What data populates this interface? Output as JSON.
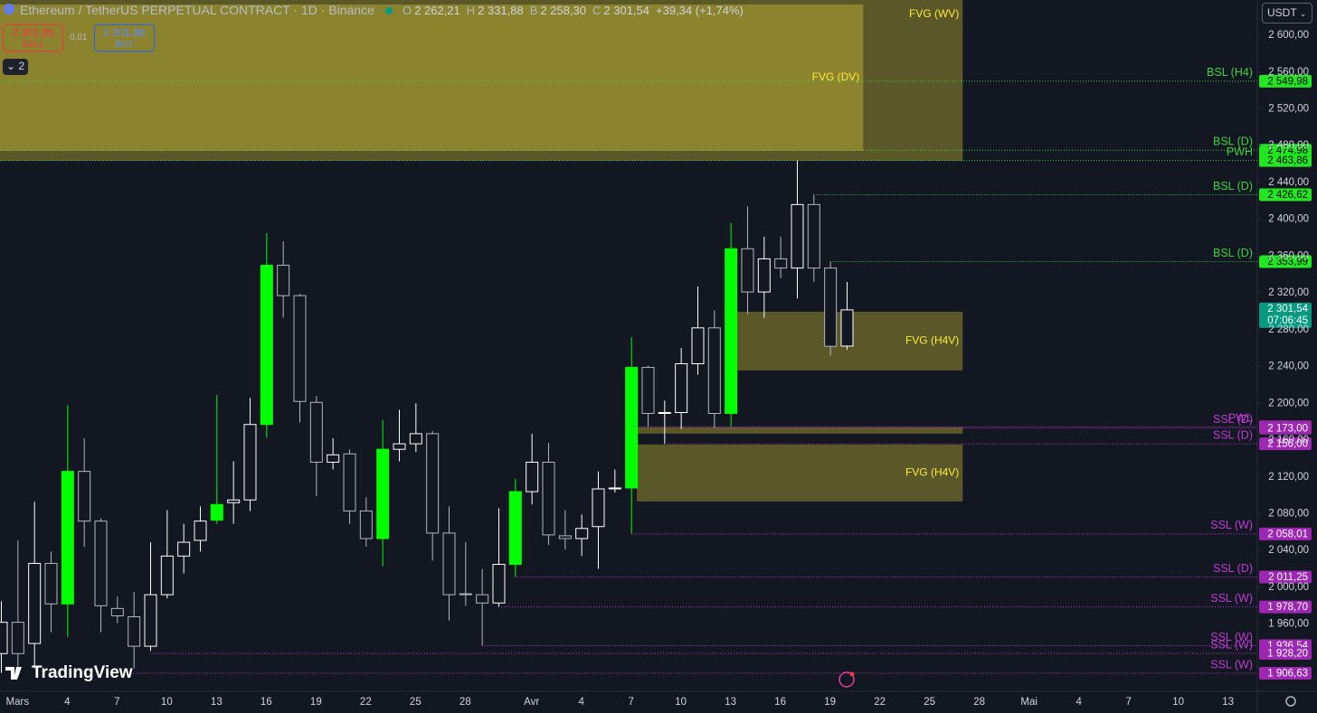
{
  "chart_data": {
    "type": "candlestick",
    "title": "Ethereum / TetherUS PERPETUAL CONTRACT · 1D · Binance",
    "legend": [
      {
        "key": "O",
        "value": "2 262,21"
      },
      {
        "key": "H",
        "value": "2 331,88"
      },
      {
        "key": "B",
        "value": "2 258,30"
      },
      {
        "key": "C",
        "value": "2 301,54"
      }
    ],
    "change": "+39,34 (+1,74%)",
    "categories": [
      null,
      "Mars",
      null,
      null,
      "4",
      null,
      null,
      "7",
      null,
      null,
      "10",
      null,
      null,
      "13",
      null,
      null,
      "16",
      null,
      null,
      "19",
      null,
      null,
      "22",
      null,
      null,
      "25",
      null,
      null,
      "28",
      null,
      null,
      null,
      "Avr",
      null,
      null,
      "4",
      null,
      null,
      "7",
      null,
      null,
      "10",
      null,
      null,
      "13",
      null,
      null,
      "16",
      null,
      null,
      "19",
      null,
      null,
      "22",
      null,
      null,
      "25",
      null,
      null,
      "28",
      null,
      null,
      "Mai",
      null,
      null,
      "4",
      null,
      null,
      "7",
      null,
      null,
      "10",
      null,
      null,
      "13",
      null
    ],
    "open": [
      1928,
      1962,
      1939,
      2026,
      1982,
      2126,
      2072,
      1977,
      1968,
      1936,
      1992,
      2034,
      2051,
      2073,
      2092,
      2095,
      2177,
      2350,
      2317,
      2201,
      2136,
      2145,
      2083,
      2053,
      2150,
      2156,
      2167,
      2059,
      1993,
      1992,
      1983,
      2025,
      2104,
      2136,
      2056,
      2053,
      2066,
      2107,
      2108,
      2239,
      2189,
      2190,
      2243,
      2282,
      2189,
      2368,
      2321,
      2357,
      2347,
      2416,
      2347,
      2262.21,
      null,
      null,
      null,
      null,
      null,
      null,
      null,
      null,
      null,
      null,
      null,
      null,
      null,
      null,
      null,
      null,
      null,
      null,
      null,
      null,
      null,
      null,
      null,
      null
    ],
    "high": [
      1985,
      2051,
      2093,
      2039,
      2198,
      2162,
      2075,
      1990,
      1995,
      2049,
      2084,
      2069,
      2088,
      2209,
      2137,
      2206,
      2385,
      2376,
      2319,
      2208,
      2162,
      2150,
      2098,
      2182,
      2193,
      2200,
      2170,
      2088,
      2049,
      2020,
      2086,
      2118,
      2167,
      2157,
      2084,
      2079,
      2126,
      2128,
      2272,
      2241,
      2203,
      2260,
      2327,
      2301,
      2396,
      2414,
      2381,
      2381,
      2463.86,
      2426.62,
      2353.99,
      2331.88,
      null,
      null,
      null,
      null,
      null,
      null,
      null,
      null,
      null,
      null,
      null,
      null,
      null,
      null,
      null,
      null,
      null,
      null,
      null,
      null,
      null,
      null,
      null,
      null
    ],
    "low": [
      1907,
      1914,
      1912,
      1951,
      1946,
      2044,
      1951,
      1961,
      1912,
      1931,
      1988,
      2015,
      2039,
      2069,
      2069,
      2083,
      2163,
      2293,
      2179,
      2099,
      2128,
      2069,
      2044,
      2023,
      2137,
      2147,
      2029,
      1964,
      1980,
      1936.54,
      1978.7,
      2011.25,
      2090,
      2046,
      2041,
      2034,
      2020,
      2103,
      2058.01,
      2174,
      2156,
      2172,
      2231,
      2173,
      2174.48,
      2297,
      2293,
      2336,
      2314,
      2332,
      2252,
      2258.3,
      null,
      null,
      null,
      null,
      null,
      null,
      null,
      null,
      null,
      null,
      null,
      null,
      null,
      null,
      null,
      null,
      null,
      null,
      null,
      null,
      null,
      null,
      null,
      null
    ],
    "close": [
      1962,
      1928,
      2026,
      1982,
      2126,
      2072,
      1980,
      1969,
      1936,
      1992,
      2034,
      2049,
      2072,
      2090,
      2095,
      2177,
      2350,
      2317,
      2202,
      2136,
      2144,
      2083,
      2053,
      2150,
      2156,
      2167,
      2059,
      1992,
      1992,
      1983,
      2025,
      2104,
      2136,
      2057,
      2053,
      2064,
      2107,
      2108,
      2239,
      2189,
      2190,
      2243,
      2282,
      2189,
      2368,
      2321,
      2357,
      2347,
      2416,
      2347,
      2262,
      2301.54,
      null,
      null,
      null,
      null,
      null,
      null,
      null,
      null,
      null,
      null,
      null,
      null,
      null,
      null,
      null,
      null,
      null,
      null,
      null,
      null,
      null,
      null,
      null,
      null
    ],
    "fills": [
      "none",
      "none",
      "none",
      "none",
      "#00ff00",
      "none",
      "none",
      "none",
      "none",
      "none",
      "none",
      "none",
      "none",
      "#00ff00",
      "none",
      "none",
      "#00ff00",
      "none",
      "none",
      "none",
      "none",
      "none",
      "none",
      "#00ff00",
      "none",
      "none",
      "none",
      "none",
      "none",
      "none",
      "none",
      "#00ff00",
      "none",
      "none",
      "none",
      "none",
      "none",
      "none",
      "#00ff00",
      "none",
      "none",
      "none",
      "none",
      "none",
      "#00ff00",
      "none",
      "none",
      "none",
      "none",
      "none",
      "none",
      "none",
      null,
      null,
      null,
      null,
      null,
      null,
      null,
      null,
      null,
      null,
      null,
      null,
      null,
      null,
      null,
      null,
      null,
      null,
      null,
      null,
      null,
      null,
      null,
      null
    ],
    "up_color": "#ffffff",
    "down_color": "#b2b5be",
    "ylim": [
      1887,
      2638.3
    ],
    "yticks": [
      {
        "value": 1960,
        "label": "1 960,00"
      },
      {
        "value": 2000,
        "label": "2 000,00"
      },
      {
        "value": 2040,
        "label": "2 040,00"
      },
      {
        "value": 2080,
        "label": "2 080,00"
      },
      {
        "value": 2120,
        "label": "2 120,00"
      },
      {
        "value": 2160,
        "label": "2 160,00"
      },
      {
        "value": 2200,
        "label": "2 200,00"
      },
      {
        "value": 2240,
        "label": "2 240,00"
      },
      {
        "value": 2280,
        "label": "2 280,00"
      },
      {
        "value": 2320,
        "label": "2 320,00"
      },
      {
        "value": 2360,
        "label": "2 360,00"
      },
      {
        "value": 2400,
        "label": "2 400,00"
      },
      {
        "value": 2440,
        "label": "2 440,00"
      },
      {
        "value": 2480,
        "label": "2 480,00"
      },
      {
        "value": 2520,
        "label": "2 520,00"
      },
      {
        "value": 2560,
        "label": "2 560,00"
      },
      {
        "value": 2600,
        "label": "2 600,00"
      }
    ],
    "grid": false,
    "zones": [
      {
        "label": "FVG (WV)",
        "top": 2782,
        "bottom": 2463.5,
        "from": 0,
        "to": 58,
        "color": "rgba(255, 235, 59, 0.3)"
      },
      {
        "label": "FVG (DV)",
        "top": 2633.4,
        "bottom": 2474.3,
        "from": 0,
        "to": 52,
        "color": "rgba(255, 235, 59, 0.3)"
      },
      {
        "label": "FVG (H4V)",
        "top": 2299.5,
        "bottom": 2235.7,
        "from": 44,
        "to": 58,
        "color": "rgba(255, 235, 59, 0.3)"
      },
      {
        "top": 2174,
        "bottom": 2167,
        "from": 38,
        "to": 58,
        "color": "rgba(255, 235, 59, 0.3)"
      },
      {
        "label": "FVG (H4V)",
        "top": 2155.2,
        "bottom": 2093.3,
        "from": 38,
        "to": 58,
        "color": "rgba(255, 235, 59, 0.3)"
      }
    ],
    "zone_label_color": "#ffeb3b",
    "levels": [
      {
        "name": "BSL (H4)",
        "value": 2549.98,
        "value_label": "2 549,98",
        "from": 0,
        "color": "#3fd23f",
        "tag_color": "#22e622",
        "tag_text_color": "#000000"
      },
      {
        "name": "BSL (D)",
        "value": 2474.98,
        "value_label": "2 474,98",
        "from": 0,
        "color": "#3fd23f",
        "tag_color": "#22e622",
        "tag_text_color": "#000000"
      },
      {
        "name": "PWH",
        "value": 2463.86,
        "value_label": "2 463,86",
        "from": 0,
        "color": "#3fd23f",
        "tag_color": "#22e622",
        "tag_text_color": "#000000"
      },
      {
        "name": "BSL (D)",
        "value": 2426.62,
        "value_label": "2 426,62",
        "from": 49,
        "color": "#3fd23f",
        "tag_color": "#22e622",
        "tag_text_color": "#000000"
      },
      {
        "name": "BSL (D)",
        "value": 2353.99,
        "value_label": "2 353,99",
        "from": 50,
        "color": "#3fd23f",
        "tag_color": "#22e622",
        "tag_text_color": "#000000"
      },
      {
        "name": "PWL",
        "value": 2174.48,
        "value_label": "2 174,48",
        "from": 38,
        "color": "#c23bd4",
        "tag_color": "#9c27b0",
        "tag_text_color": "#ffffff"
      },
      {
        "name": "SSL (D)",
        "value": 2173.0,
        "value_label": "2 173,00",
        "from": 43,
        "color": "#c23bd4",
        "tag_color": "#9c27b0",
        "tag_text_color": "#ffffff"
      },
      {
        "name": "SSL (D)",
        "value": 2156.0,
        "value_label": "2 156,00",
        "from": 40,
        "color": "#c23bd4",
        "tag_color": "#9c27b0",
        "tag_text_color": "#ffffff"
      },
      {
        "name": "SSL (W)",
        "value": 2058.01,
        "value_label": "2 058,01",
        "from": 38,
        "color": "#c23bd4",
        "tag_color": "#9c27b0",
        "tag_text_color": "#ffffff"
      },
      {
        "name": "SSL (D)",
        "value": 2011.25,
        "value_label": "2 011,25",
        "from": 31,
        "color": "#c23bd4",
        "tag_color": "#9c27b0",
        "tag_text_color": "#ffffff"
      },
      {
        "name": "SSL (W)",
        "value": 1978.7,
        "value_label": "1 978,70",
        "from": 30,
        "color": "#c23bd4",
        "tag_color": "#9c27b0",
        "tag_text_color": "#ffffff"
      },
      {
        "name": "SSL (W)",
        "value": 1936.54,
        "value_label": "1 936,54",
        "from": 29,
        "color": "#c23bd4",
        "tag_color": "#9c27b0",
        "tag_text_color": "#ffffff"
      },
      {
        "name": "SSL (W)",
        "value": 1928.2,
        "value_label": "1 928,20",
        "from": 9,
        "color": "#c23bd4",
        "tag_color": "#9c27b0",
        "tag_text_color": "#ffffff"
      },
      {
        "name": "SSL (W)",
        "value": 1906.63,
        "value_label": "1 906,63",
        "from": 8,
        "color": "#c23bd4",
        "tag_color": "#9c27b0",
        "tag_text_color": "#ffffff"
      }
    ],
    "last_price_label": "2 301,54",
    "countdown": "07:06:45",
    "last_price_color": "#089981"
  },
  "toolbar": {
    "sell_price": "2 301,85",
    "sell": "SELL",
    "spread": "0,01",
    "buy_price": "2 301,86",
    "buy": "BUY",
    "indicators": "2",
    "currency": "USDT",
    "logo": "TradingView"
  }
}
